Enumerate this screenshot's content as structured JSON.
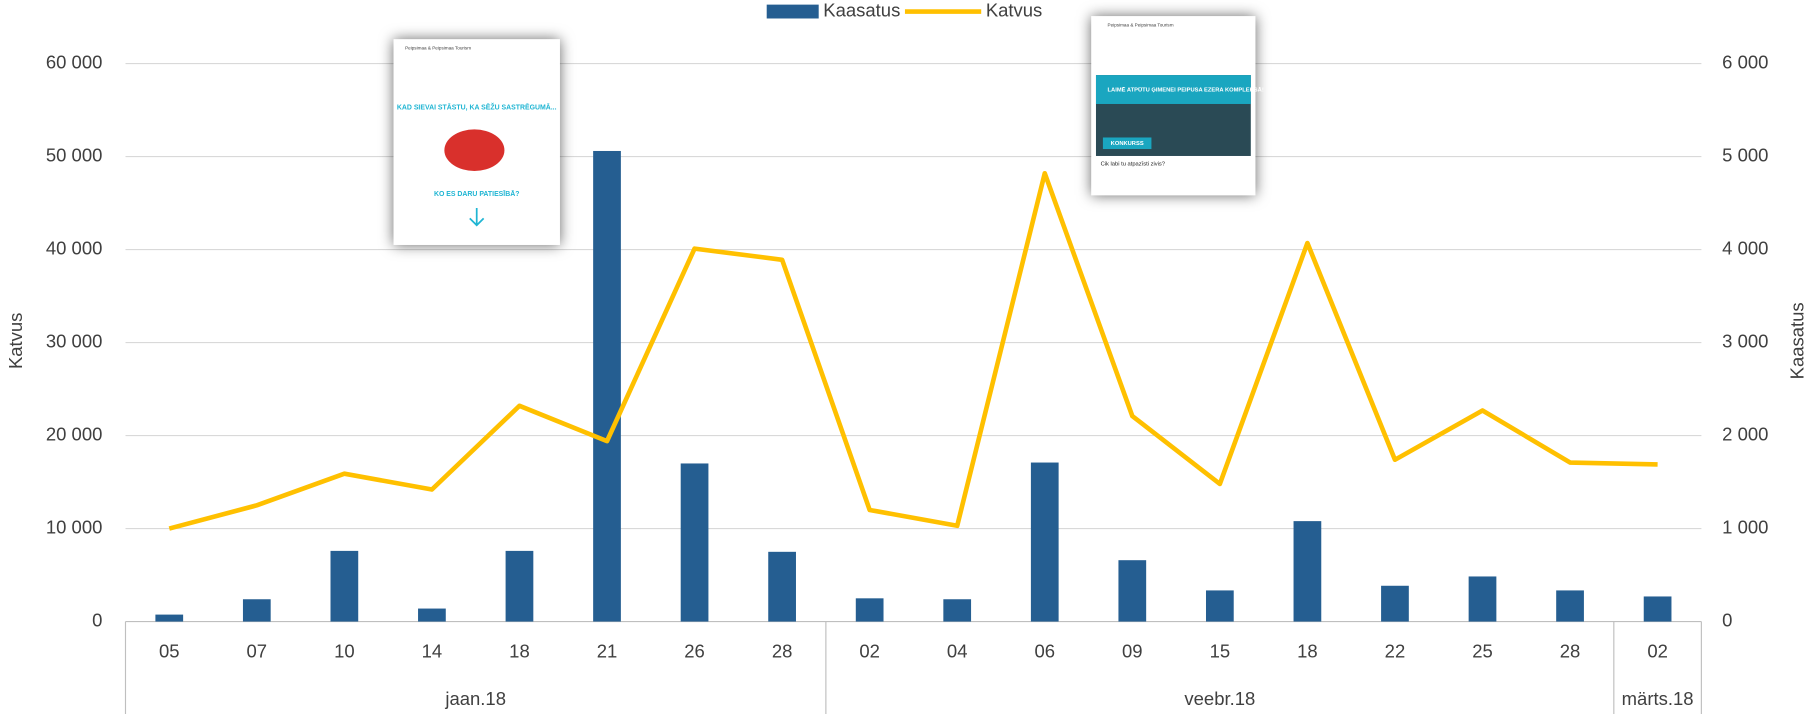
{
  "chart_data": {
    "type": "combo",
    "y_label": "Katvus",
    "y2_label": "Kaasatus",
    "category_groups": [
      {
        "label": "jaan.18",
        "categories": [
          "05",
          "07",
          "10",
          "14",
          "18",
          "21",
          "26",
          "28"
        ]
      },
      {
        "label": "veebr.18",
        "categories": [
          "02",
          "04",
          "06",
          "09",
          "15",
          "18",
          "22",
          "25",
          "28"
        ]
      },
      {
        "label": "märts.18",
        "categories": [
          "02"
        ]
      }
    ],
    "series": [
      {
        "name": "Kaasatus",
        "type": "bar",
        "axis": "y2",
        "color": "#255e91",
        "values": [
          75,
          240,
          760,
          140,
          760,
          5060,
          1700,
          750,
          250,
          240,
          1710,
          660,
          335,
          1080,
          385,
          485,
          335,
          270
        ]
      },
      {
        "name": "Katvus",
        "type": "line",
        "color": "#ffc000",
        "values": [
          10000,
          12500,
          15900,
          14200,
          23200,
          19400,
          40100,
          38900,
          12000,
          10300,
          48200,
          22100,
          14800,
          40700,
          17400,
          22700,
          17100,
          16900
        ]
      }
    ],
    "ylim": [
      0,
      60000
    ],
    "yticks": [
      0,
      {
        "value": 10000,
        "label": "10 000"
      },
      {
        "value": 20000,
        "label": "20 000"
      },
      {
        "value": 30000,
        "label": "30 000"
      },
      {
        "value": 40000,
        "label": "40 000"
      },
      {
        "value": 50000,
        "label": "50 000"
      },
      {
        "value": 60000,
        "label": "60 000"
      }
    ],
    "y2lim": [
      0,
      6000
    ],
    "y2ticks": [
      0,
      {
        "value": 1000,
        "label": "1 000"
      },
      {
        "value": 2000,
        "label": "2 000"
      },
      {
        "value": 3000,
        "label": "3 000"
      },
      {
        "value": 4000,
        "label": "4 000"
      },
      {
        "value": 5000,
        "label": "5 000"
      },
      {
        "value": 6000,
        "label": "6 000"
      }
    ],
    "grid": true,
    "legend": "top"
  },
  "posts": [
    {
      "author": "Peipsimaa & Peipsimaa Tourism",
      "headline": "KAD SIEVAI STĀSTU, KA SĒŽU SASTRĒGUMĀ...",
      "footer": "KO ES DARU PATIESĪBĀ?"
    },
    {
      "author": "Peipsimaa & Peipsimaa Tourism",
      "headline": "LAIMĒ ATPŪTU ĢIMENEI PEIPUSA EZERA KOMPLEKSĀ!",
      "footer": "KONKURSS",
      "caption": "Cik labi tu atpazīsti zivis?"
    }
  ]
}
